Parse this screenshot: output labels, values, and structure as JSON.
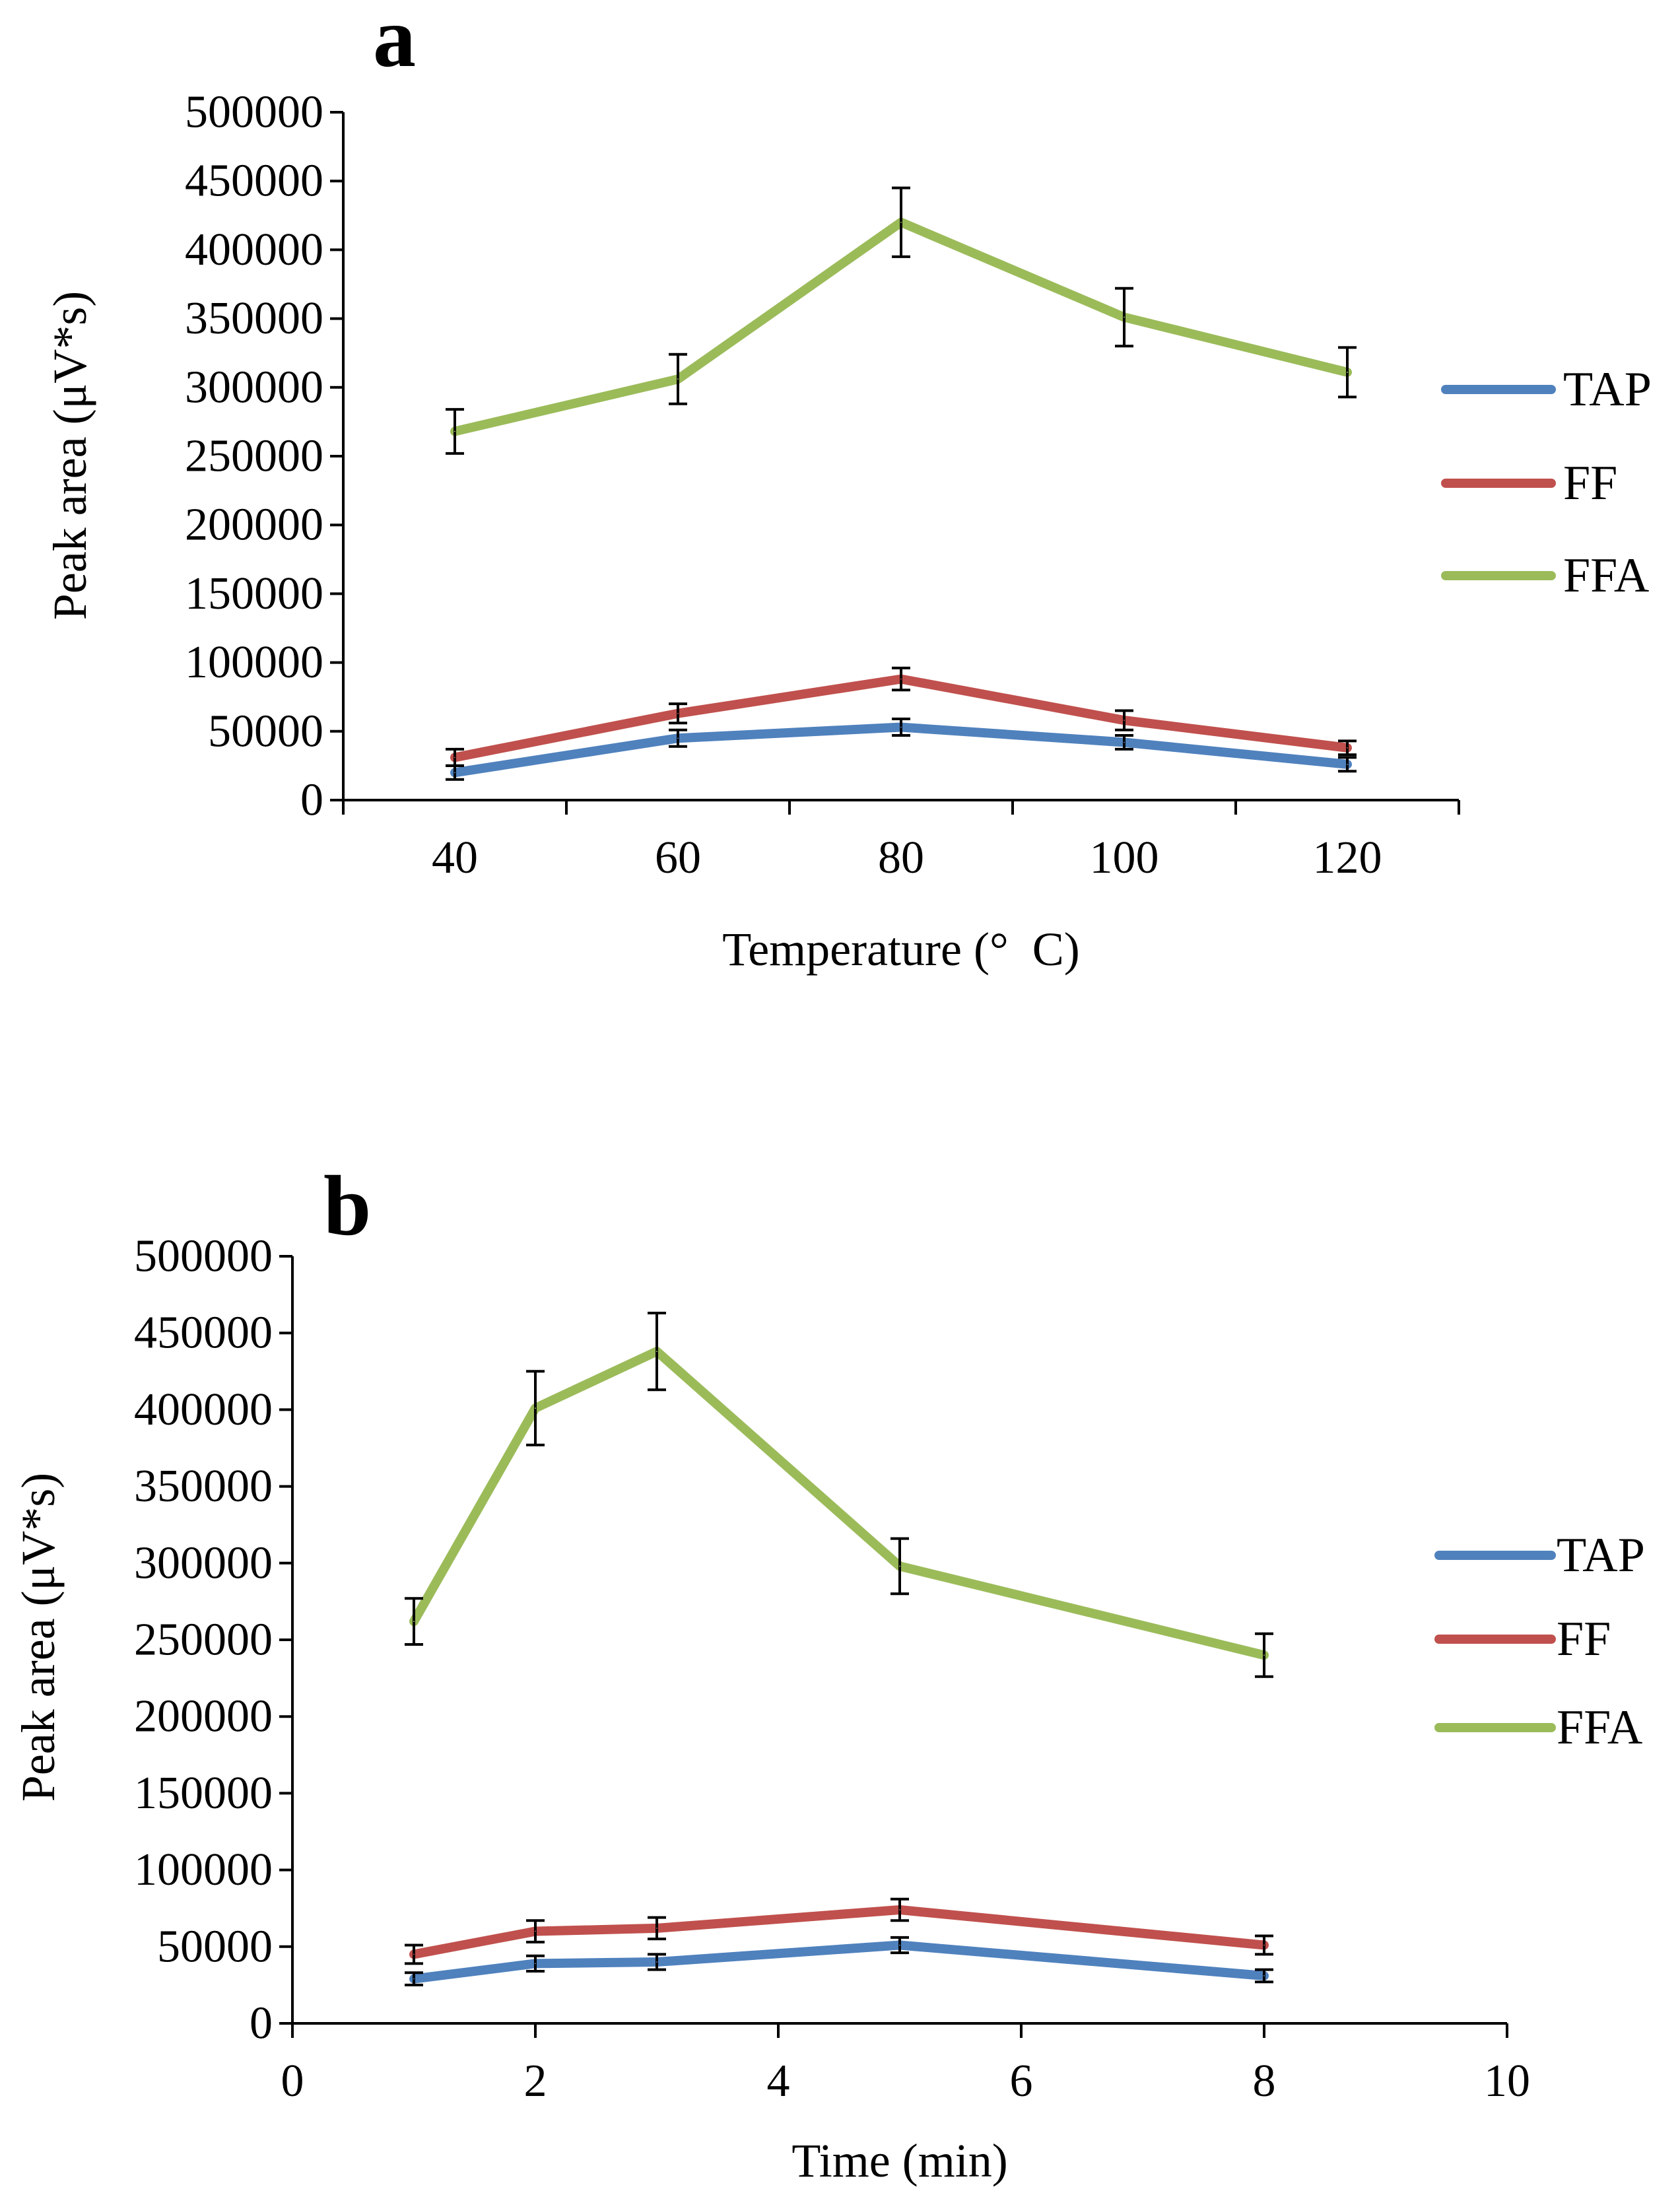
{
  "chart_data": [
    {
      "type": "line",
      "panel_label": "a",
      "xlabel": "Temperature (° C)",
      "ylabel": "Peak area (μV*s)",
      "x_type": "category",
      "categories": [
        "40",
        "60",
        "80",
        "100",
        "120"
      ],
      "ylim": [
        0,
        500000
      ],
      "y_ticks": [
        0,
        50000,
        100000,
        150000,
        200000,
        250000,
        300000,
        350000,
        400000,
        450000,
        500000
      ],
      "legend": "right",
      "series": [
        {
          "name": "TAP",
          "color": "#4f81bd",
          "values": [
            20000,
            45000,
            53000,
            42000,
            26000
          ],
          "errors": [
            5000,
            6000,
            6000,
            5000,
            5000
          ]
        },
        {
          "name": "FF",
          "color": "#c0504d",
          "values": [
            31000,
            63000,
            88000,
            58000,
            38000
          ],
          "errors": [
            6000,
            7000,
            8000,
            7000,
            5000
          ]
        },
        {
          "name": "FFA",
          "color": "#9bbb59",
          "values": [
            268000,
            306000,
            420000,
            351000,
            311000
          ],
          "errors": [
            16000,
            18000,
            25000,
            21000,
            18000
          ]
        }
      ]
    },
    {
      "type": "line",
      "panel_label": "b",
      "xlabel": "Time (min)",
      "ylabel": "Peak area (μV*s)",
      "x_type": "numeric",
      "xlim": [
        0,
        10
      ],
      "x_ticks": [
        0,
        2,
        4,
        6,
        8,
        10
      ],
      "ylim": [
        0,
        500000
      ],
      "y_ticks": [
        0,
        50000,
        100000,
        150000,
        200000,
        250000,
        300000,
        350000,
        400000,
        450000,
        500000
      ],
      "legend": "right",
      "series": [
        {
          "name": "TAP",
          "color": "#4f81bd",
          "x": [
            1,
            2,
            3,
            5,
            8
          ],
          "values": [
            29000,
            39000,
            40000,
            51000,
            31000
          ],
          "errors": [
            4000,
            5000,
            5000,
            5000,
            4000
          ]
        },
        {
          "name": "FF",
          "color": "#c0504d",
          "x": [
            1,
            2,
            3,
            5,
            8
          ],
          "values": [
            45000,
            60000,
            62000,
            74000,
            51000
          ],
          "errors": [
            6000,
            7000,
            7000,
            7000,
            6000
          ]
        },
        {
          "name": "FFA",
          "color": "#9bbb59",
          "x": [
            1,
            2,
            3,
            5,
            8
          ],
          "values": [
            262000,
            401000,
            438000,
            298000,
            240000
          ],
          "errors": [
            15000,
            24000,
            25000,
            18000,
            14000
          ]
        }
      ]
    }
  ]
}
